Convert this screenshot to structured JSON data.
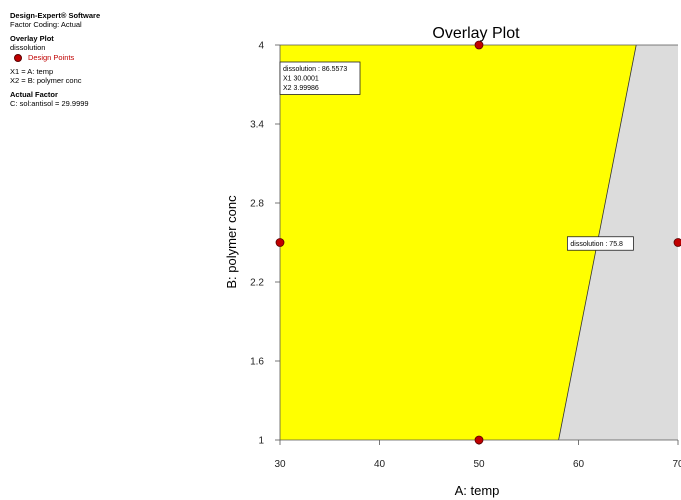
{
  "sidebar": {
    "software": "Design-Expert® Software",
    "coding": "Factor Coding: Actual",
    "plot_label": "Overlay Plot",
    "response": "dissolution",
    "legend_label": "Design Points",
    "x1": "X1 = A: temp",
    "x2": "X2 = B: polymer conc",
    "actual_factor_label": "Actual Factor",
    "actual_factor": "C: sol:antisol = 29.9999"
  },
  "chart_data": {
    "type": "contour-overlay",
    "title": "Overlay Plot",
    "xlabel": "A: temp",
    "ylabel": "B: polymer conc",
    "xlim": [
      30,
      70
    ],
    "ylim": [
      1,
      4
    ],
    "xticks": [
      "30",
      "40",
      "50",
      "60",
      "70"
    ],
    "yticks": [
      "1",
      "1.6",
      "2.2",
      "2.8",
      "3.4",
      "4"
    ],
    "regions": [
      {
        "name": "feasible",
        "color": "#ffff00",
        "polygon": [
          [
            30,
            1
          ],
          [
            58,
            1
          ],
          [
            65.8,
            4
          ],
          [
            30,
            4
          ]
        ]
      },
      {
        "name": "infeasible",
        "color": "#dcdcdc",
        "polygon": [
          [
            58,
            1
          ],
          [
            70,
            1
          ],
          [
            70,
            4
          ],
          [
            65.8,
            4
          ]
        ]
      }
    ],
    "boundary": {
      "x": [
        58,
        65.8
      ],
      "y": [
        1,
        4
      ]
    },
    "design_points": [
      {
        "x": 50,
        "y": 4
      },
      {
        "x": 30,
        "y": 2.5
      },
      {
        "x": 70,
        "y": 2.5
      },
      {
        "x": 50,
        "y": 1
      }
    ],
    "point_color": "#c00000",
    "flags": [
      {
        "lines": [
          "dissolution :    86.5573",
          "X1  30.0001",
          "X2  3.99986"
        ],
        "at": [
          30,
          4
        ]
      },
      {
        "lines": [
          "dissolution : 75.8"
        ],
        "at": [
          62.1,
          2.5
        ]
      }
    ]
  }
}
